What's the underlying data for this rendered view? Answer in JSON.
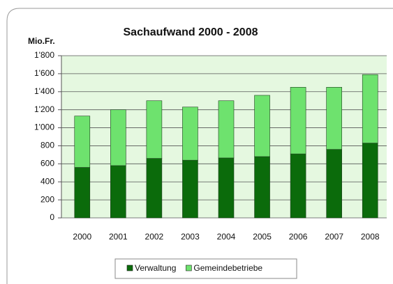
{
  "chart_data": {
    "type": "stacked_bar",
    "title": "Sachaufwand  2000 - 2008",
    "y_label": "Mio.Fr.",
    "categories": [
      "2000",
      "2001",
      "2002",
      "2003",
      "2004",
      "2005",
      "2006",
      "2007",
      "2008"
    ],
    "series": [
      {
        "name": "Verwaltung",
        "color": "#0b6b0b",
        "values": [
          560,
          580,
          660,
          640,
          665,
          680,
          710,
          760,
          830
        ]
      },
      {
        "name": "Gemeindebetriebe",
        "color": "#6ee26e",
        "values": [
          570,
          620,
          640,
          590,
          635,
          680,
          740,
          690,
          760
        ]
      }
    ],
    "ylim": [
      0,
      1800
    ],
    "yticks": [
      0,
      200,
      400,
      600,
      800,
      {
        "value": 1000,
        "label": "1'000"
      },
      {
        "value": 1200,
        "label": "1'200"
      },
      {
        "value": 1400,
        "label": "1'400"
      },
      {
        "value": 1600,
        "label": "1'600"
      },
      {
        "value": 1800,
        "label": "1'800"
      }
    ],
    "grid": true,
    "legend": "bottom"
  }
}
